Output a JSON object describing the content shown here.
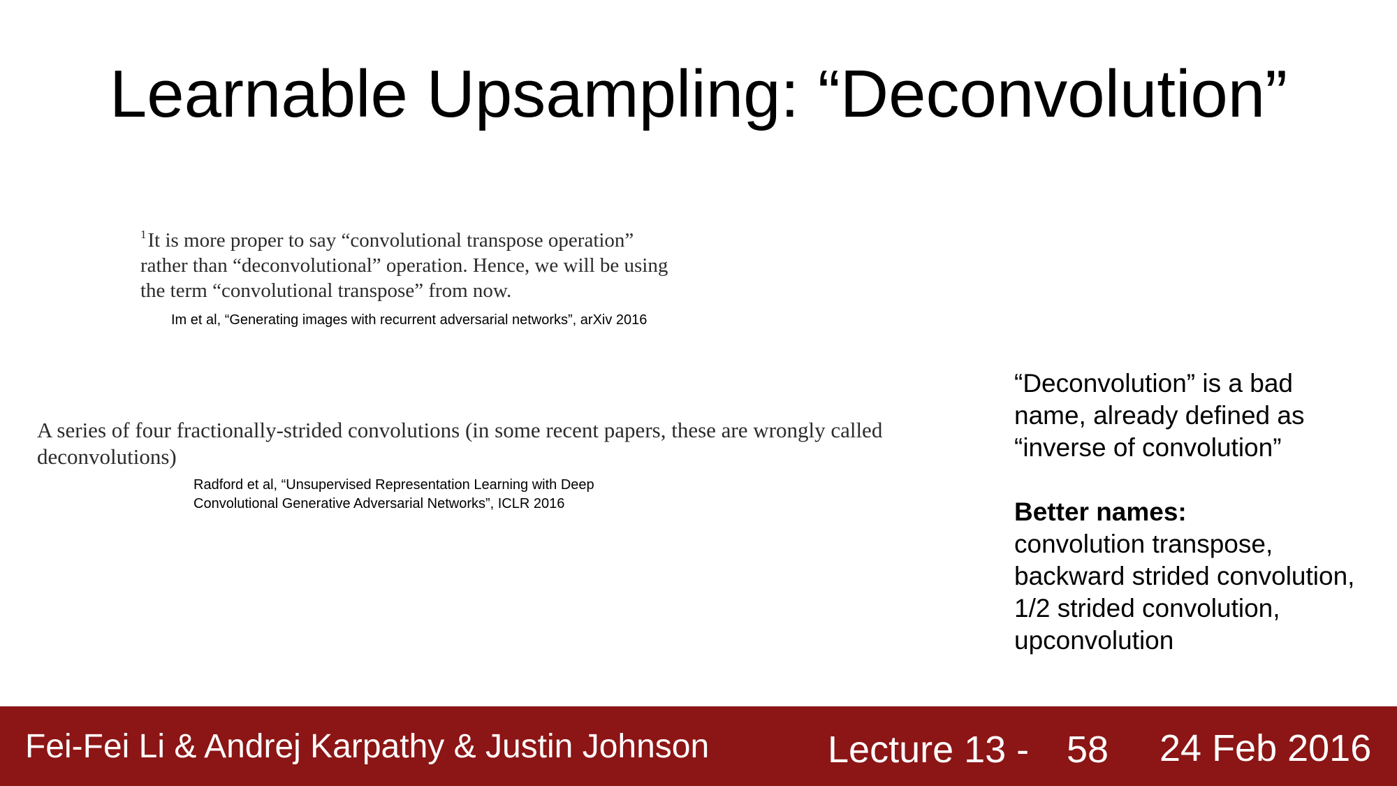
{
  "slide": {
    "title": "Learnable Upsampling: “Deconvolution”"
  },
  "quote1": {
    "superscript": "1",
    "lines": [
      "It is more proper to say “convolutional transpose operation”",
      "rather than “deconvolutional” operation. Hence, we will be using",
      "the term “convolutional transpose” from now."
    ],
    "citation": "Im et al, “Generating images with recurrent adversarial networks”, arXiv 2016"
  },
  "quote2": {
    "lines": [
      "A series of four fractionally-strided convolutions (in some recent papers, these are wrongly called",
      "deconvolutions)"
    ],
    "citation_lines": [
      "Radford et al, “Unsupervised Representation Learning with Deep",
      "Convolutional Generative Adversarial Networks”, ICLR 2016"
    ]
  },
  "note": {
    "intro_lines": [
      "“Deconvolution” is a bad",
      "name, already defined as",
      "“inverse of convolution”"
    ],
    "better_heading": "Better names:",
    "names": [
      "convolution transpose,",
      "backward strided convolution,",
      "1/2 strided convolution,",
      "upconvolution"
    ]
  },
  "footer": {
    "authors": "Fei-Fei Li & Andrej Karpathy & Justin Johnson",
    "lecture": "Lecture 13 -",
    "page": "58",
    "date": "24 Feb 2016",
    "background_color": "#8c1515"
  }
}
